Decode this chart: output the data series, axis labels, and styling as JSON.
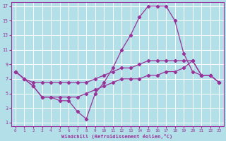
{
  "background_color": "#b2dfe8",
  "grid_color": "#ffffff",
  "line_color": "#993399",
  "xlabel": "Windchill (Refroidissement éolien,°C)",
  "xlim": [
    -0.5,
    23.5
  ],
  "ylim": [
    0.5,
    17.5
  ],
  "xticks": [
    0,
    1,
    2,
    3,
    4,
    5,
    6,
    7,
    8,
    9,
    10,
    11,
    12,
    13,
    14,
    15,
    16,
    17,
    18,
    19,
    20,
    21,
    22,
    23
  ],
  "yticks": [
    1,
    3,
    5,
    7,
    9,
    11,
    13,
    15,
    17
  ],
  "line1_y": [
    8.0,
    7.0,
    6.0,
    4.5,
    4.5,
    4.0,
    4.0,
    2.5,
    1.5,
    5.0,
    6.5,
    8.5,
    11.0,
    13.0,
    15.5,
    17.0,
    17.0,
    17.0,
    15.0,
    10.5,
    8.0,
    7.5,
    7.5,
    6.5
  ],
  "line2_y": [
    8.0,
    7.0,
    6.5,
    6.5,
    6.5,
    6.5,
    6.5,
    6.5,
    6.5,
    7.0,
    7.5,
    8.0,
    8.5,
    8.5,
    9.0,
    9.5,
    9.5,
    9.5,
    9.5,
    9.5,
    9.5,
    7.5,
    7.5,
    6.5
  ],
  "line3_y": [
    8.0,
    7.0,
    6.0,
    4.5,
    4.5,
    4.5,
    4.5,
    4.5,
    5.0,
    5.5,
    6.0,
    6.5,
    7.0,
    7.0,
    7.0,
    7.5,
    7.5,
    8.0,
    8.0,
    8.5,
    9.5,
    7.5,
    7.5,
    6.5
  ]
}
